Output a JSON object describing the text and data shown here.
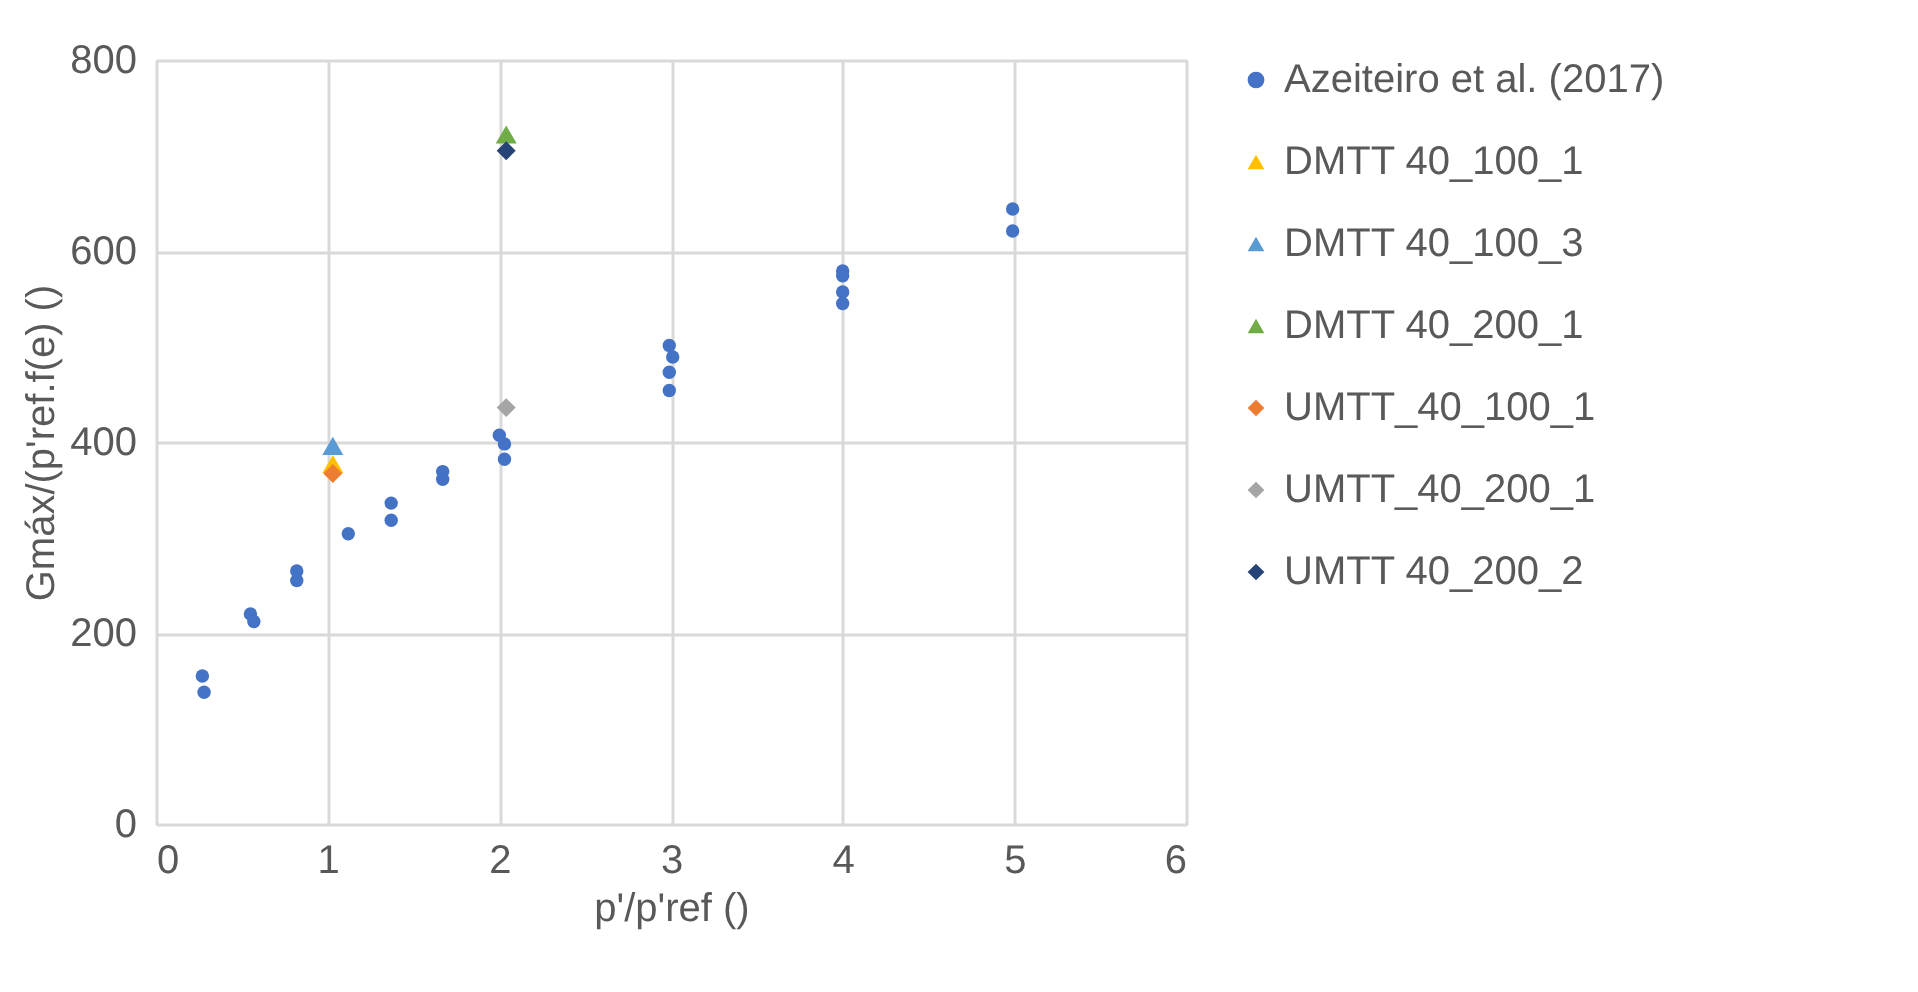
{
  "chart_data": {
    "type": "scatter",
    "xlabel": "p'/p'ref ()",
    "ylabel": "Gmáx/(p'ref.f(e) ()",
    "xlim": [
      0,
      6
    ],
    "xticks": [
      0,
      1,
      2,
      3,
      4,
      5,
      6
    ],
    "ylim": [
      0,
      800
    ],
    "yticks": [
      0,
      200,
      400,
      600,
      800
    ],
    "grid": true,
    "legend": "right",
    "series": [
      {
        "name": "Azeiteiro et al. (2017)",
        "color": "#4472c4",
        "marker": "circle",
        "x": [
          0.27,
          0.28,
          0.55,
          0.57,
          0.82,
          0.82,
          1.12,
          1.37,
          1.37,
          1.67,
          1.67,
          2.0,
          2.03,
          2.03,
          2.99,
          3.01,
          2.99,
          2.99,
          4.0,
          4.0,
          4.0,
          4.0,
          4.99,
          4.99
        ],
        "values": [
          155,
          138,
          220,
          212,
          265,
          255,
          304,
          336,
          318,
          369,
          361,
          407,
          398,
          382,
          501,
          489,
          473,
          454,
          579,
          574,
          557,
          545,
          644,
          621
        ]
      },
      {
        "name": "DMTT 40_100_1",
        "color": "#ffc000",
        "marker": "triangle",
        "x": [
          1.03
        ],
        "values": [
          377
        ]
      },
      {
        "name": "DMTT 40_100_3",
        "color": "#5b9bd5",
        "marker": "triangle",
        "x": [
          1.03
        ],
        "values": [
          396
        ]
      },
      {
        "name": "DMTT 40_200_1",
        "color": "#70ad47",
        "marker": "triangle",
        "x": [
          2.04
        ],
        "values": [
          722
        ]
      },
      {
        "name": "UMTT_40_100_1",
        "color": "#ed7d31",
        "marker": "diamond",
        "x": [
          1.03
        ],
        "values": [
          367
        ]
      },
      {
        "name": "UMTT_40_200_1",
        "color": "#a5a5a5",
        "marker": "diamond",
        "x": [
          2.04
        ],
        "values": [
          436
        ]
      },
      {
        "name": "UMTT 40_200_2",
        "color": "#264478",
        "marker": "diamond",
        "x": [
          2.04
        ],
        "values": [
          705
        ]
      }
    ]
  }
}
